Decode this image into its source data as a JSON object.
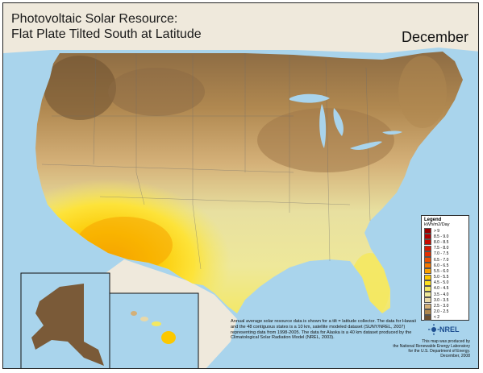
{
  "map": {
    "title_line1": "Photovoltaic Solar Resource:",
    "title_line2": "Flat Plate Tilted South at Latitude",
    "month": "December"
  },
  "legend": {
    "title": "Legend",
    "subtitle": "kWh/m2/Day",
    "classes": [
      {
        "label": "> 9",
        "color": "#9a0000"
      },
      {
        "label": "8.5 - 9.0",
        "color": "#b40000"
      },
      {
        "label": "8.0 - 8.5",
        "color": "#c80a00"
      },
      {
        "label": "7.5 - 8.0",
        "color": "#d81800"
      },
      {
        "label": "7.0 - 7.5",
        "color": "#e43000"
      },
      {
        "label": "6.5 - 7.0",
        "color": "#ee5000"
      },
      {
        "label": "6.0 - 6.5",
        "color": "#f57800"
      },
      {
        "label": "5.5 - 6.0",
        "color": "#f9a000"
      },
      {
        "label": "5.0 - 5.5",
        "color": "#fcc800"
      },
      {
        "label": "4.5 - 5.0",
        "color": "#fde020"
      },
      {
        "label": "4.0 - 4.5",
        "color": "#f4e860"
      },
      {
        "label": "3.5 - 4.0",
        "color": "#eee89a"
      },
      {
        "label": "3.0 - 3.5",
        "color": "#e8d8a8"
      },
      {
        "label": "2.5 - 3.0",
        "color": "#d4b078"
      },
      {
        "label": "2.0 - 2.5",
        "color": "#b08850"
      },
      {
        "label": "< 2",
        "color": "#6e5030"
      }
    ]
  },
  "note": {
    "text": "Annual average solar resource data is shown for a tilt = latitude collector. The data for Hawaii and the 48 contiguous states is a 10 km, satellite modeled dataset (SUNY/NREL, 2007) representing data from 1998-2005. The data for Alaska is a 40 km dataset produced by the Climatological Solar Radiation Model (NREL, 2003)."
  },
  "logo": {
    "text": "NREL"
  },
  "credit": {
    "line1": "This map was produced by",
    "line2": "the National Renewable Energy Laboratory",
    "line3": "for the U.S. Department of Energy.",
    "line4": "December, 2008"
  },
  "colors": {
    "ocean": "#a9d4ec",
    "neighbor_land": "#efe9dc",
    "alaska": "#7a5a38"
  }
}
